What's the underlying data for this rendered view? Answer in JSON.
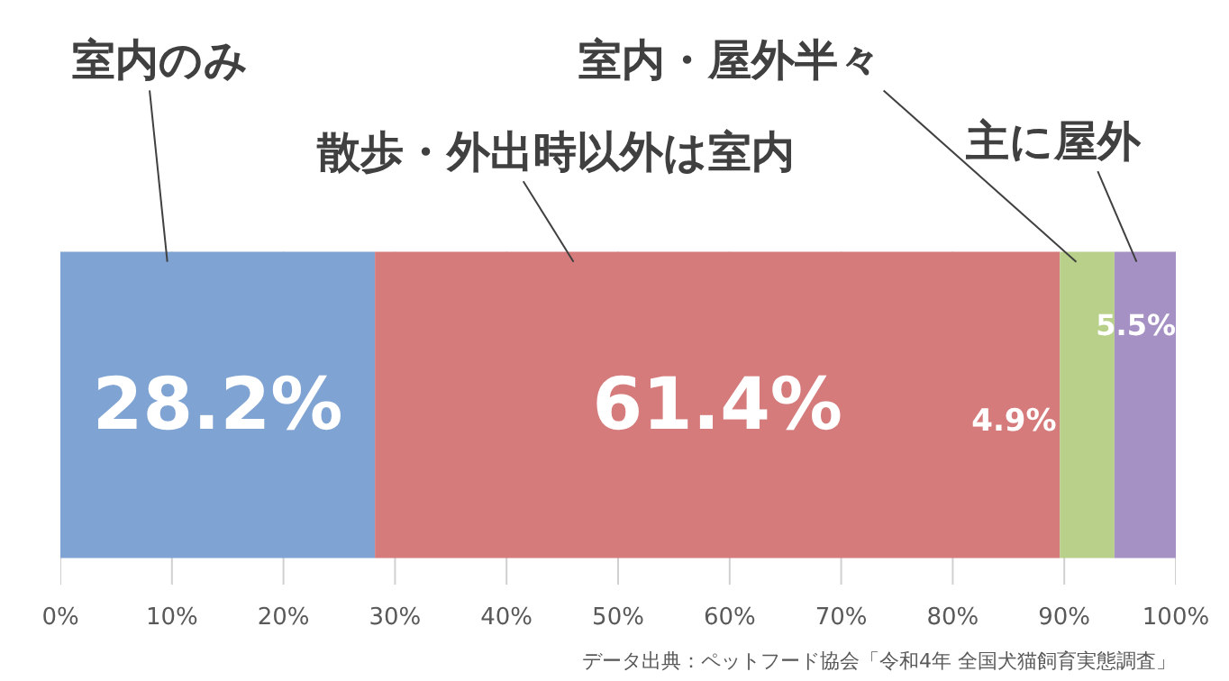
{
  "chart_data": {
    "type": "bar",
    "orientation": "horizontal",
    "stacked": true,
    "categories": [
      null
    ],
    "series": [
      {
        "name": "室内のみ",
        "color": "#7fa3d2",
        "values": [
          28.2
        ],
        "value_labels": [
          "28.2%"
        ]
      },
      {
        "name": "散歩・外出時以外は室内",
        "color": "#d67b7b",
        "values": [
          61.4
        ],
        "value_labels": [
          "61.4%"
        ]
      },
      {
        "name": "室内・屋外半々",
        "color": "#b8d08a",
        "values": [
          4.9
        ],
        "value_labels": [
          "4.9%"
        ]
      },
      {
        "name": "主に屋外",
        "color": "#a591c4",
        "values": [
          5.5
        ],
        "value_labels": [
          "5.5%"
        ]
      }
    ],
    "xlim": [
      0,
      100
    ],
    "xticks": [
      {
        "value": 0,
        "label": "0%"
      },
      {
        "value": 10,
        "label": "10%"
      },
      {
        "value": 20,
        "label": "20%"
      },
      {
        "value": 30,
        "label": "30%"
      },
      {
        "value": 40,
        "label": "40%"
      },
      {
        "value": 50,
        "label": "50%"
      },
      {
        "value": 60,
        "label": "60%"
      },
      {
        "value": 70,
        "label": "70%"
      },
      {
        "value": 80,
        "label": "80%"
      },
      {
        "value": 90,
        "label": "90%"
      },
      {
        "value": 100,
        "label": "100%"
      }
    ],
    "grid": "x",
    "annotations": [
      "データ出典：ペットフード協会「令和4年 全国犬猫飼育実態調査」"
    ]
  }
}
